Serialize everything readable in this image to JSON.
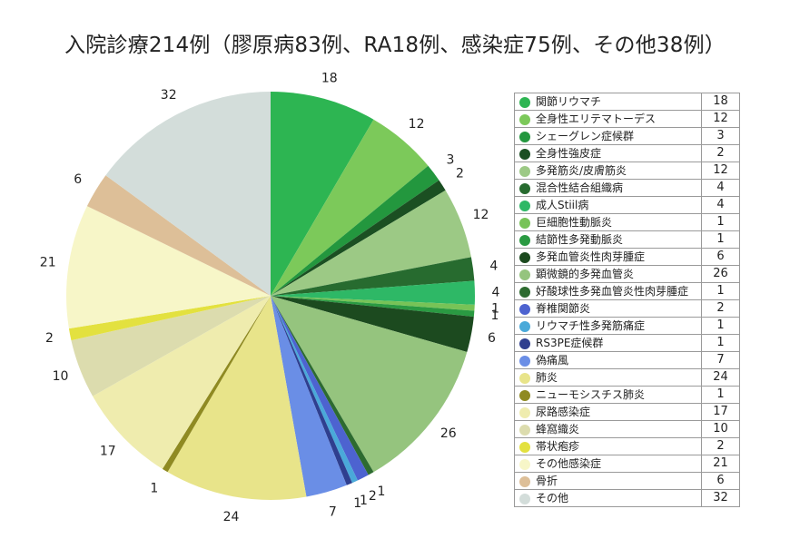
{
  "chart_data": {
    "type": "pie",
    "title": "入院診療214例（膠原病83例、RA18例、感染症75例、その他38例）",
    "slices": [
      {
        "name": "関節リウマチ",
        "value": 18,
        "color": "#2db552"
      },
      {
        "name": "全身性エリテマトーデス",
        "value": 12,
        "color": "#7cc95a"
      },
      {
        "name": "シェーグレン症候群",
        "value": 3,
        "color": "#23973e"
      },
      {
        "name": "全身性強皮症",
        "value": 2,
        "color": "#1b4f22"
      },
      {
        "name": "多発筋炎/皮膚筋炎",
        "value": 12,
        "color": "#9cc985"
      },
      {
        "name": "混合性結合組織病",
        "value": 4,
        "color": "#276b2f"
      },
      {
        "name": "成人Stiil病",
        "value": 4,
        "color": "#2eb866"
      },
      {
        "name": "巨細胞性動脈炎",
        "value": 1,
        "color": "#77c357"
      },
      {
        "name": "結節性多発動脈炎",
        "value": 1,
        "color": "#2a9a42"
      },
      {
        "name": "多発血管炎性肉芽腫症",
        "value": 6,
        "color": "#1c4a1f"
      },
      {
        "name": "顕微鏡的多発血管炎",
        "value": 26,
        "color": "#95c47e"
      },
      {
        "name": "好酸球性多発血管炎性肉芽腫症",
        "value": 1,
        "color": "#2d6b30"
      },
      {
        "name": "脊椎関節炎",
        "value": 2,
        "color": "#4d63d0"
      },
      {
        "name": "リウマチ性多発筋痛症",
        "value": 1,
        "color": "#4aa9d9"
      },
      {
        "name": "RS3PE症候群",
        "value": 1,
        "color": "#2f3f8f"
      },
      {
        "name": "偽痛風",
        "value": 7,
        "color": "#6a8ee6"
      },
      {
        "name": "肺炎",
        "value": 24,
        "color": "#e8e48a"
      },
      {
        "name": "ニューモシスチス肺炎",
        "value": 1,
        "color": "#8f8a22"
      },
      {
        "name": "尿路感染症",
        "value": 17,
        "color": "#efecae"
      },
      {
        "name": "蜂窩織炎",
        "value": 10,
        "color": "#dcdcae"
      },
      {
        "name": "帯状疱疹",
        "value": 2,
        "color": "#e3e13f"
      },
      {
        "name": "その他感染症",
        "value": 21,
        "color": "#f7f6c8"
      },
      {
        "name": "骨折",
        "value": 6,
        "color": "#ddbf98"
      },
      {
        "name": "その他",
        "value": 32,
        "color": "#d3ddda"
      }
    ]
  }
}
